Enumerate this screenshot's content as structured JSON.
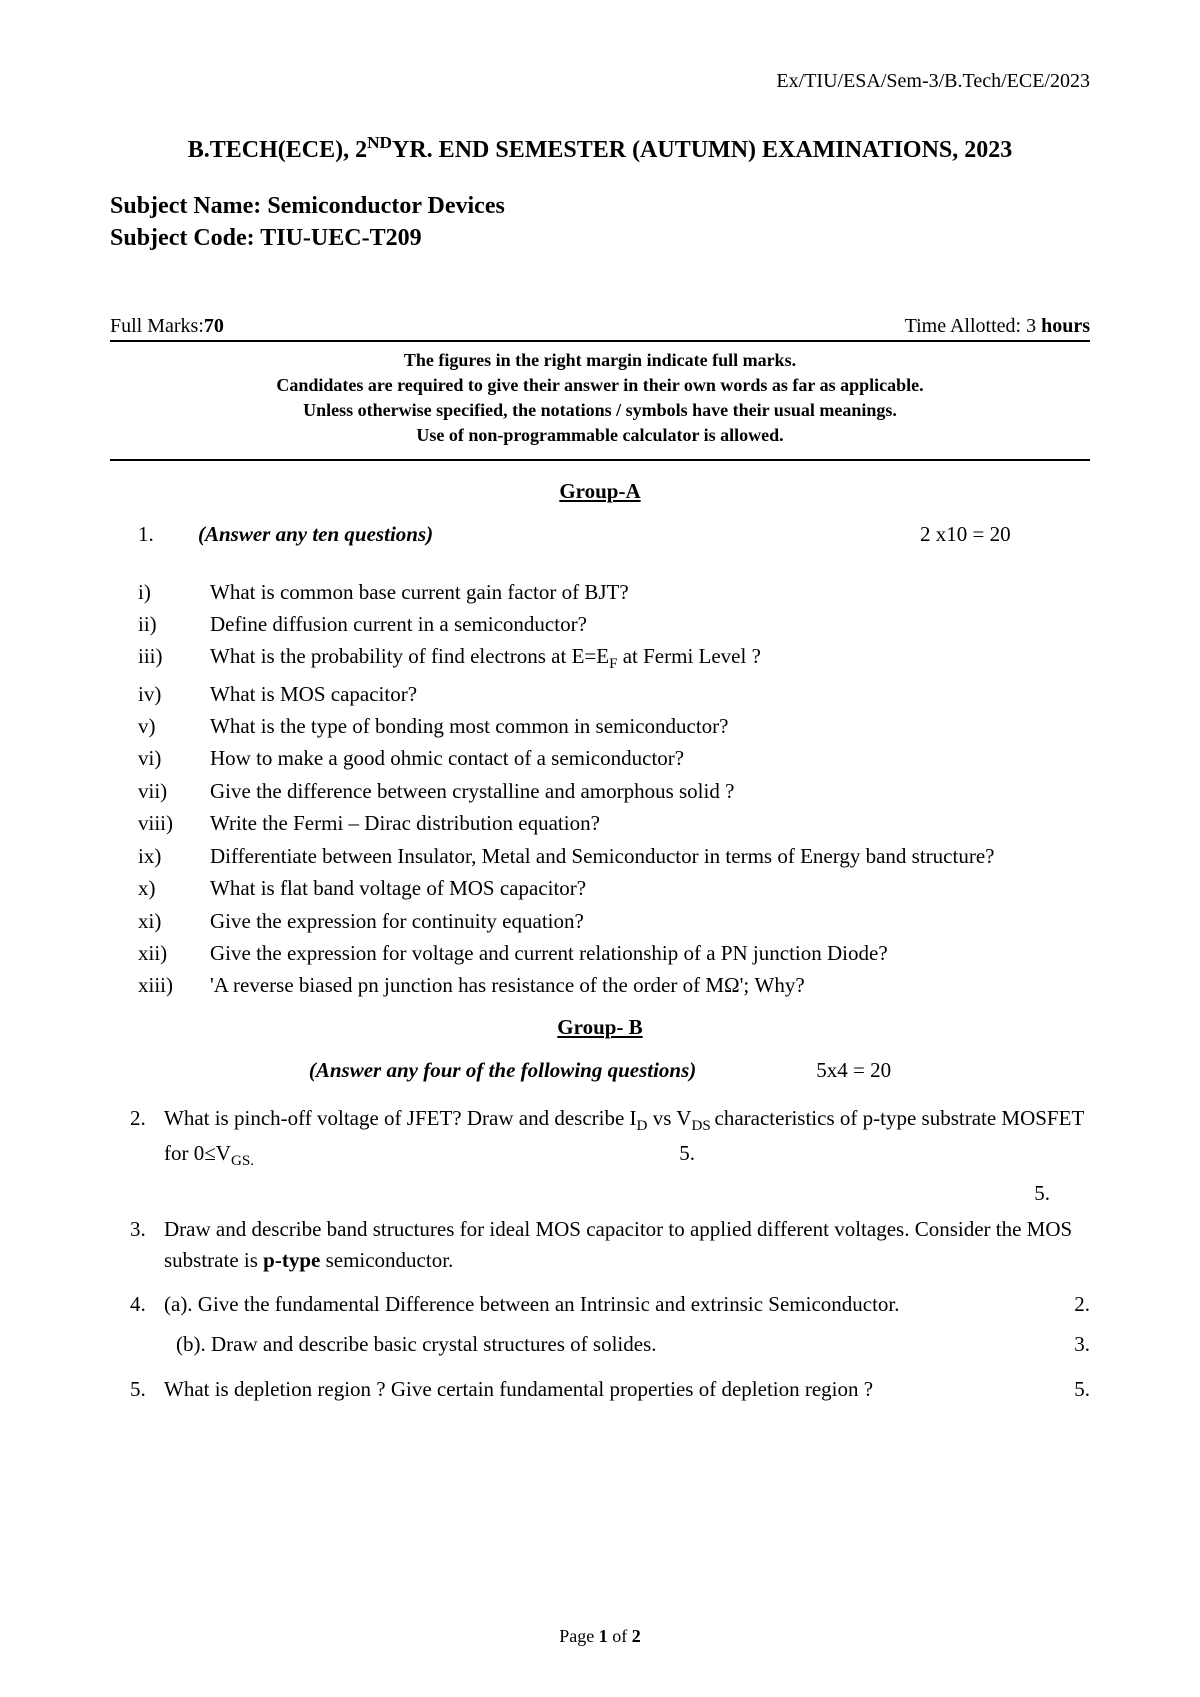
{
  "header": {
    "doc_code": "Ex/TIU/ESA/Sem-3/B.Tech/ECE/2023",
    "title_prefix": "B.TECH(ECE), 2",
    "title_sup": "ND",
    "title_suffix": "YR. END SEMESTER (AUTUMN) EXAMINATIONS, 2023",
    "subject_name_label": "Subject Name: ",
    "subject_name": "Semiconductor Devices",
    "subject_code_label": "Subject Code: ",
    "subject_code": "TIU-UEC-T209",
    "full_marks_label": "Full Marks:",
    "full_marks_value": "70",
    "time_label": "Time Allotted: 3 ",
    "time_unit": "hours"
  },
  "instructions": {
    "l1": "The figures in the right margin indicate full marks.",
    "l2": "Candidates are required to give their answer in their own words as far as applicable.",
    "l3": "Unless otherwise specified, the notations / symbols have their usual meanings.",
    "l4": "Use of non-programmable calculator is allowed."
  },
  "groupA": {
    "title": "Group-A",
    "number": "1.",
    "instruction": "(Answer any ten questions)",
    "marks": "2 x10 = 20",
    "items": [
      {
        "r": "i)",
        "t": "What is common base current gain factor of BJT?"
      },
      {
        "r": "ii)",
        "t": "Define diffusion current in a semiconductor?"
      },
      {
        "r": "iii)",
        "t_pre": "What is the probability of find electrons at E=E",
        "sub": "F",
        "t_post": " at  Fermi Level ?"
      },
      {
        "r": "iv)",
        "t": "What is MOS capacitor?"
      },
      {
        "r": "v)",
        "t": "What is the type of bonding most common in semiconductor?"
      },
      {
        "r": "vi)",
        "t": "How to make a good ohmic contact of a semiconductor?"
      },
      {
        "r": "vii)",
        "t": "Give the difference between crystalline and amorphous solid ?"
      },
      {
        "r": "viii)",
        "t": "Write the Fermi – Dirac distribution equation?"
      },
      {
        "r": "ix)",
        "t": " Differentiate between Insulator, Metal and Semiconductor in terms of Energy band structure?"
      },
      {
        "r": "x)",
        "t": "What is flat band voltage of MOS capacitor?"
      },
      {
        "r": "xi)",
        "t": "Give the expression for continuity equation?"
      },
      {
        "r": "xii)",
        "t": "Give the expression for voltage and current relationship of a PN junction Diode?"
      },
      {
        "r": "xiii)",
        "t": "'A reverse biased pn junction has resistance of the order of MΩ'; Why?"
      }
    ]
  },
  "groupB": {
    "title": "Group- B",
    "instruction": "(Answer any four of the following questions)",
    "marks": "5x4 = 20",
    "q2": {
      "num": "2.",
      "pre": "What is pinch-off voltage of JFET? Draw and describe I",
      "sub1": "D",
      "mid": " vs V",
      "sub2": "DS ",
      "post1": "characteristics of p-type substrate MOSFET for 0≤V",
      "sub3": "GS.",
      "inline_mark": "5.",
      "hang_mark": "5."
    },
    "q3": {
      "num": "3.",
      "pre": "Draw and describe band structures for ideal MOS capacitor to applied different voltages. Consider the MOS substrate is ",
      "bold": "p-type",
      "post": " semiconductor."
    },
    "q4": {
      "num": "4.",
      "a": "(a). Give the fundamental Difference between an Intrinsic and extrinsic Semiconductor.",
      "a_mark": "2.",
      "b": "(b). Draw and describe basic crystal structures of solides.",
      "b_mark": "3."
    },
    "q5": {
      "num": "5.",
      "t": "What is depletion region ? Give certain fundamental properties of depletion region ?",
      "mark": "5."
    }
  },
  "footer": {
    "page": "Page 1 of 2"
  }
}
